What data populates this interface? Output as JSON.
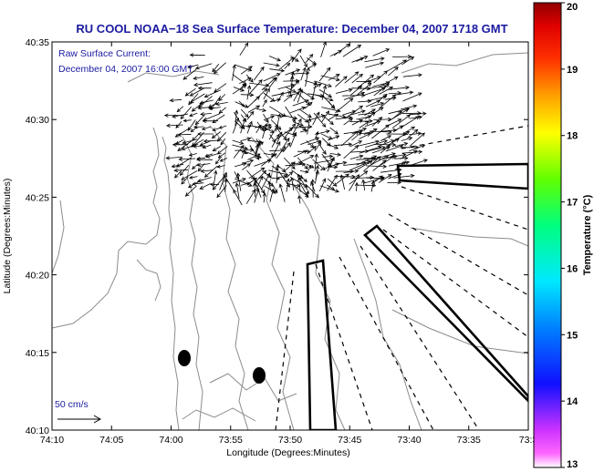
{
  "header": {
    "title": "RU COOL  NOAA−18  Sea Surface Temperature:  December 04, 2007 1718 GMT"
  },
  "map": {
    "note_line1": "Raw Surface Current:",
    "note_line2": "December 04, 2007 16:00 GMT",
    "scale_label": "50 cm/s",
    "xlabel": "Longitude (Degrees:Minutes)",
    "ylabel": "Latitude (Degrees:Minutes)",
    "xticks": [
      "74:10",
      "74:05",
      "74:00",
      "73:55",
      "73:50",
      "73:45",
      "73:40",
      "73:35",
      "73:3"
    ],
    "yticks": [
      "40:35",
      "40:30",
      "40:25",
      "40:20",
      "40:15",
      "40:10"
    ],
    "colors": {
      "frame": "#000000",
      "contour": "#8c8c8c",
      "vector": "#000000",
      "label": "#1a1aa0"
    }
  },
  "colorbar": {
    "label": "Temperature (°C)",
    "ticks": [
      "20",
      "19",
      "18",
      "17",
      "16",
      "15",
      "14",
      "13"
    ],
    "min": 13,
    "max": 20,
    "colors": [
      "#ff00ff",
      "#0000ff",
      "#00ffff",
      "#00ff00",
      "#ffff00",
      "#ff8000",
      "#ff0000",
      "#800000"
    ]
  }
}
